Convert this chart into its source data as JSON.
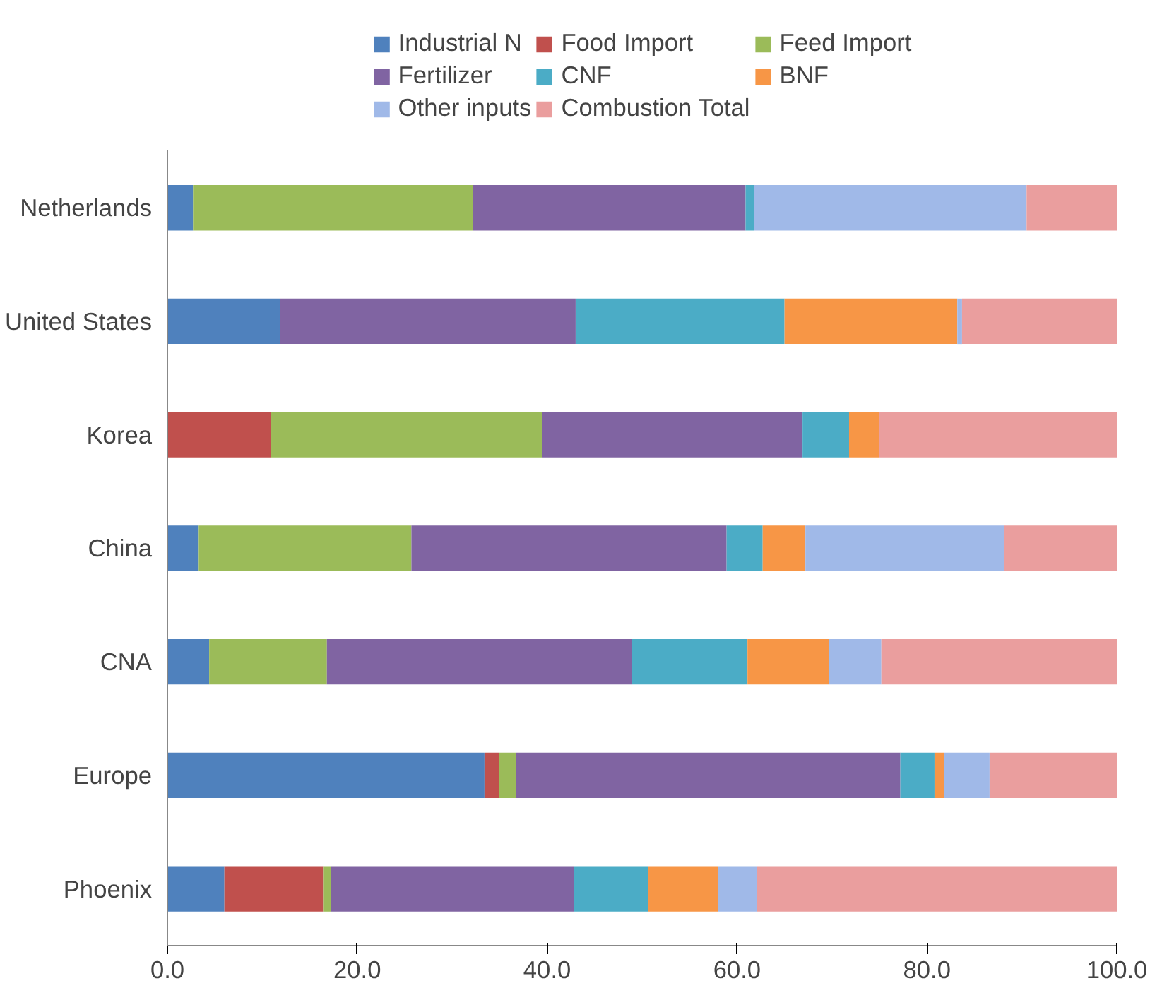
{
  "chart_data": {
    "type": "bar",
    "orientation": "horizontal",
    "stacked": true,
    "categories": [
      "Netherlands",
      "United States",
      "Korea",
      "China",
      "CNA",
      "Europe",
      "Phoenix"
    ],
    "series": [
      {
        "name": "Industrial N",
        "color": "#4f81bd",
        "values": [
          2.7,
          11.9,
          0,
          3.3,
          4.4,
          33.4,
          6.0
        ]
      },
      {
        "name": "Food Import",
        "color": "#c0504d",
        "values": [
          0,
          0,
          10.9,
          0,
          0,
          1.5,
          10.4
        ]
      },
      {
        "name": "Feed Import",
        "color": "#9bbb59",
        "values": [
          29.5,
          0,
          28.6,
          22.4,
          12.4,
          1.8,
          0.8
        ]
      },
      {
        "name": "Fertilizer",
        "color": "#8064a2",
        "values": [
          28.7,
          31.1,
          27.4,
          33.2,
          32.1,
          40.5,
          25.6
        ]
      },
      {
        "name": "CNF",
        "color": "#4bacc6",
        "values": [
          0.9,
          22.0,
          4.9,
          3.8,
          12.2,
          3.6,
          7.8
        ]
      },
      {
        "name": "BNF",
        "color": "#f79646",
        "values": [
          0,
          18.2,
          3.2,
          4.5,
          8.6,
          1.0,
          7.4
        ]
      },
      {
        "name": "Other inputs",
        "color": "#a0b9e8",
        "values": [
          28.7,
          0.5,
          0,
          20.9,
          5.5,
          4.8,
          4.1
        ]
      },
      {
        "name": "Combustion Total",
        "color": "#ea9e9e",
        "values": [
          9.5,
          16.3,
          25.0,
          11.9,
          24.8,
          13.4,
          37.9
        ]
      }
    ],
    "xlim": [
      0,
      100
    ],
    "xticks": [
      {
        "value": 0,
        "label": "0.0"
      },
      {
        "value": 20,
        "label": "20.0"
      },
      {
        "value": 40,
        "label": "40.0"
      },
      {
        "value": 60,
        "label": "60.0"
      },
      {
        "value": 80,
        "label": "80.0"
      },
      {
        "value": 100,
        "label": "100.0"
      }
    ],
    "grid": false,
    "legend": "top"
  }
}
